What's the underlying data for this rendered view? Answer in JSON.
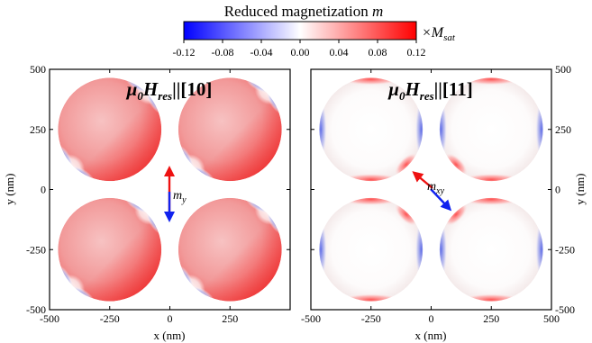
{
  "colorbar": {
    "title": "Reduced magnetization ",
    "title_symbol": "m",
    "ticks": [
      "-0.12",
      "-0.08",
      "-0.04",
      "0.00",
      "0.04",
      "0.08",
      "0.12"
    ],
    "range": [
      -0.12,
      0.12
    ],
    "unit_prefix": "×M",
    "unit_sub": "sat",
    "colors": {
      "neg": "#0000ff",
      "zero": "#ffffff",
      "pos": "#ff0000"
    }
  },
  "panels": [
    {
      "title_main": "μ",
      "title_sub1": "0",
      "title_H": "H",
      "title_sub2": "res",
      "title_rest": "||[10]",
      "arrow_label": "m",
      "arrow_sub": "y"
    },
    {
      "title_main": "μ",
      "title_sub1": "0",
      "title_H": "H",
      "title_sub2": "res",
      "title_rest": "||[11]",
      "arrow_label": "m",
      "arrow_sub": "xy"
    }
  ],
  "axes": {
    "xlabel": "x (nm)",
    "ylabel": "y (nm)",
    "x_ticks": [
      "-500",
      "-250",
      "0",
      "250",
      "500"
    ],
    "y_ticks": [
      "500",
      "250",
      "0",
      "-250",
      "-500"
    ],
    "xlim": [
      -500,
      500
    ],
    "ylim": [
      -500,
      500
    ]
  },
  "chart_data": {
    "type": "heatmap",
    "title": "Reduced magnetization m",
    "xlabel": "x (nm)",
    "ylabel": "y (nm)",
    "xlim": [
      -500,
      500
    ],
    "ylim": [
      -500,
      500
    ],
    "colorbar_range": [
      -0.12,
      0.12
    ],
    "panels": [
      {
        "field": "[10]",
        "disk_centers_nm": [
          [
            -250,
            250
          ],
          [
            250,
            250
          ],
          [
            -250,
            -250
          ],
          [
            250,
            -250
          ]
        ],
        "disk_radius_nm": 215,
        "dominant_value": 0.06,
        "edge_negative_value": -0.05
      },
      {
        "field": "[11]",
        "disk_centers_nm": [
          [
            -250,
            250
          ],
          [
            250,
            250
          ],
          [
            -250,
            -250
          ],
          [
            250,
            -250
          ]
        ],
        "disk_radius_nm": 215,
        "dominant_value": 0.0,
        "edge_positive_value": 0.06,
        "edge_negative_value": -0.06
      }
    ]
  }
}
